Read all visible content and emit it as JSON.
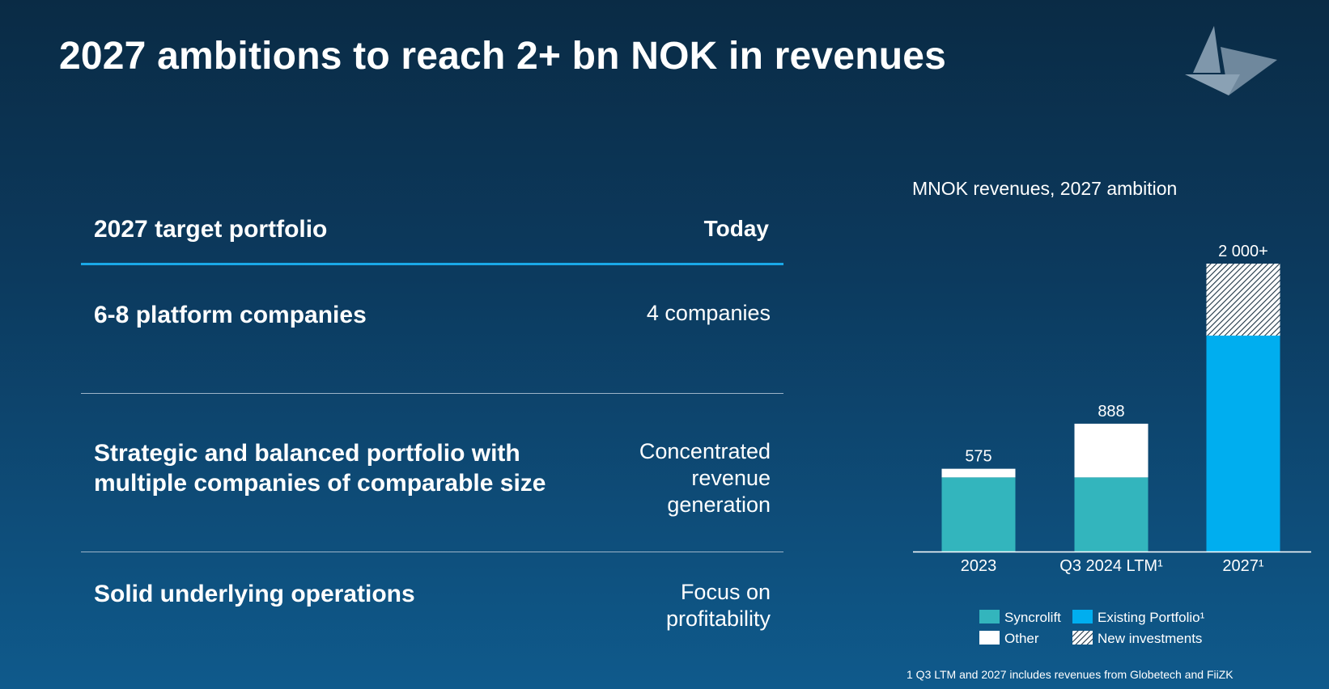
{
  "slide": {
    "title": "2027 ambitions to reach 2+ bn NOK in revenues"
  },
  "table": {
    "header_left": "2027 target portfolio",
    "header_right": "Today",
    "rows": [
      {
        "target": "6-8 platform companies",
        "today": "4 companies"
      },
      {
        "target": "Strategic and balanced portfolio with multiple companies of comparable size",
        "today": "Concentrated revenue generation"
      },
      {
        "target": "Solid underlying operations",
        "today": "Focus on profitability"
      }
    ]
  },
  "chart_data": {
    "type": "bar",
    "stacked": true,
    "title": "MNOK revenues, 2027 ambition",
    "categories": [
      "2023",
      "Q3 2024 LTM¹",
      "2027¹"
    ],
    "totals_labels": [
      "575",
      "888",
      "2 000+"
    ],
    "ylim": [
      0,
      2000
    ],
    "series": [
      {
        "name": "Syncrolift",
        "color": "#33b5bd",
        "values": [
          515,
          515,
          0
        ]
      },
      {
        "name": "Other",
        "color": "#ffffff",
        "values": [
          60,
          373,
          0
        ]
      },
      {
        "name": "Existing Portfolio¹",
        "color": "#00aeef",
        "values": [
          0,
          0,
          1500
        ]
      },
      {
        "name": "New investments",
        "color": "hatched",
        "values": [
          0,
          0,
          500
        ]
      }
    ],
    "legend": [
      "Syncrolift",
      "Existing Portfolio¹",
      "Other",
      "New investments"
    ],
    "legend_placement": "bottom"
  },
  "footnote": "1 Q3 LTM and 2027 includes revenues from Globetech and FiiZK"
}
